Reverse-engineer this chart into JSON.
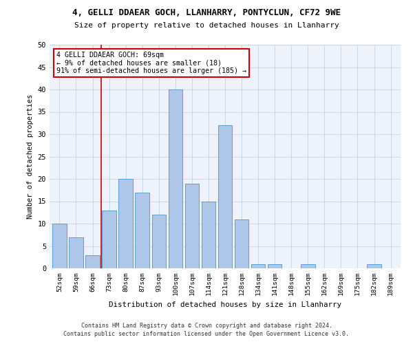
{
  "title": "4, GELLI DDAEAR GOCH, LLANHARRY, PONTYCLUN, CF72 9WE",
  "subtitle": "Size of property relative to detached houses in Llanharry",
  "xlabel": "Distribution of detached houses by size in Llanharry",
  "ylabel": "Number of detached properties",
  "bar_color": "#aec6e8",
  "bar_edge_color": "#5a9fd4",
  "background_color": "#eef2fa",
  "categories": [
    "52sqm",
    "59sqm",
    "66sqm",
    "73sqm",
    "80sqm",
    "87sqm",
    "93sqm",
    "100sqm",
    "107sqm",
    "114sqm",
    "121sqm",
    "128sqm",
    "134sqm",
    "141sqm",
    "148sqm",
    "155sqm",
    "162sqm",
    "169sqm",
    "175sqm",
    "182sqm",
    "189sqm"
  ],
  "values": [
    10,
    7,
    3,
    13,
    20,
    17,
    12,
    40,
    19,
    15,
    32,
    11,
    1,
    1,
    0,
    1,
    0,
    0,
    0,
    1,
    0
  ],
  "ylim": [
    0,
    50
  ],
  "yticks": [
    0,
    5,
    10,
    15,
    20,
    25,
    30,
    35,
    40,
    45,
    50
  ],
  "property_line_x": 2.5,
  "annotation_text": "4 GELLI DDAEAR GOCH: 69sqm\n← 9% of detached houses are smaller (18)\n91% of semi-detached houses are larger (185) →",
  "annotation_box_color": "#ffffff",
  "annotation_box_edge_color": "#cc0000",
  "red_line_color": "#cc0000",
  "footer_line1": "Contains HM Land Registry data © Crown copyright and database right 2024.",
  "footer_line2": "Contains public sector information licensed under the Open Government Licence v3.0."
}
